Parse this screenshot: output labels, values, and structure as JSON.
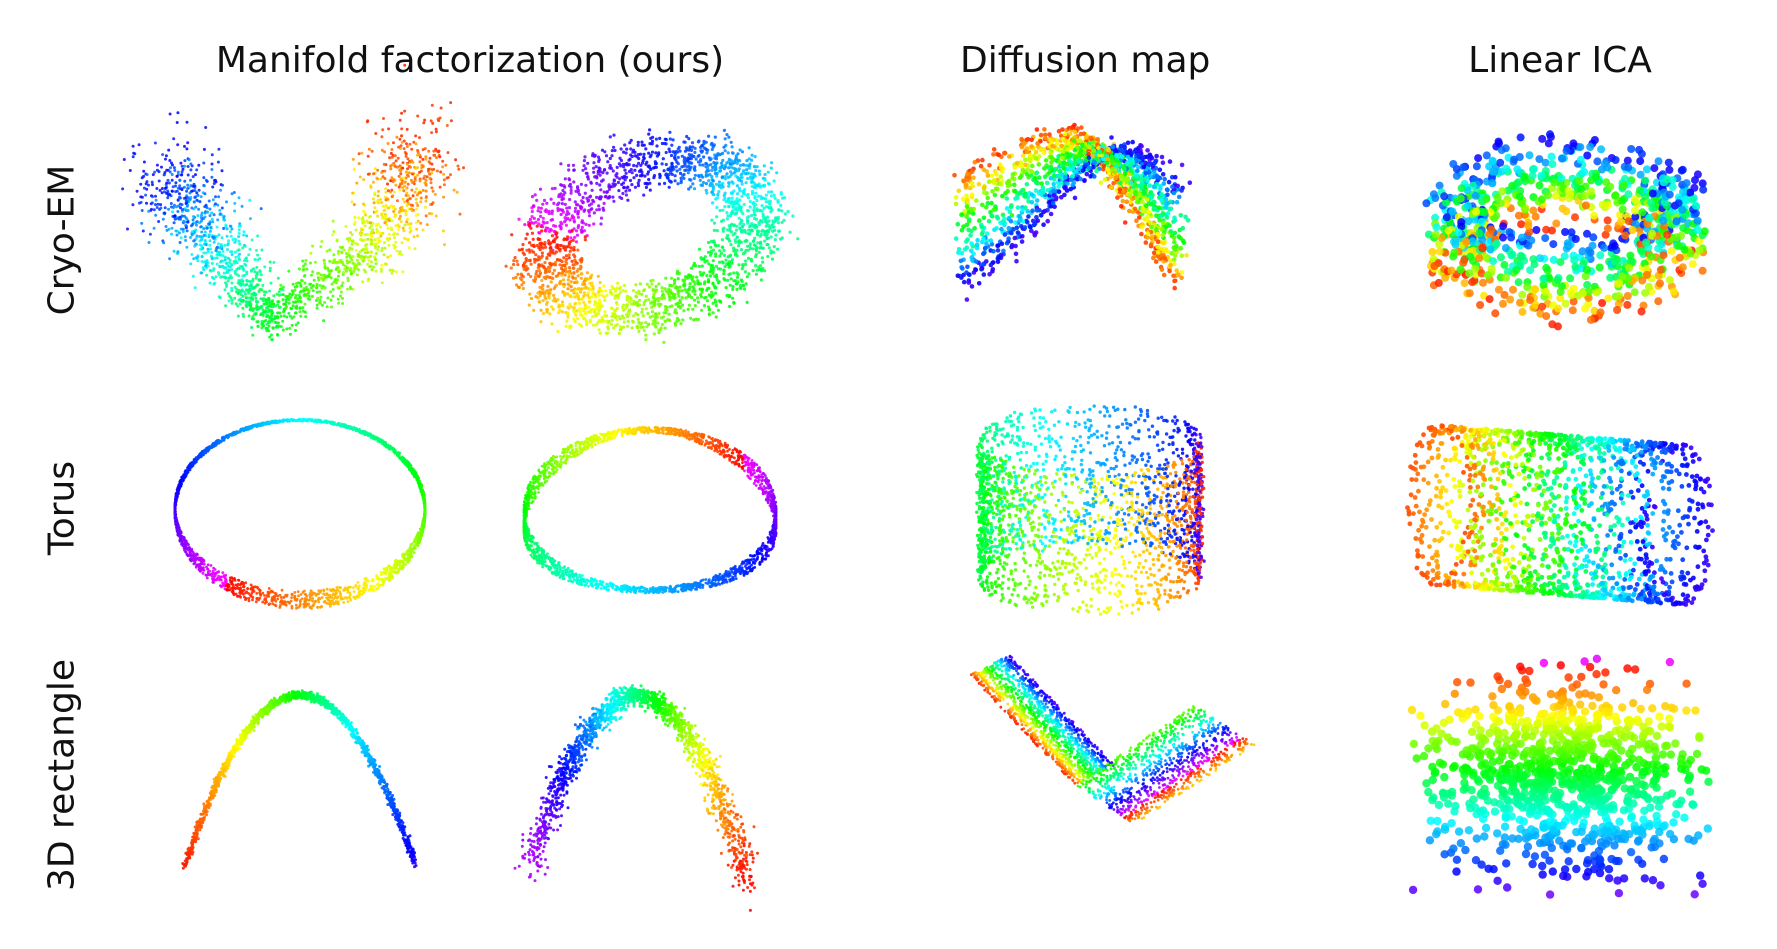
{
  "figure": {
    "column_titles": {
      "manifold": "Manifold factorization (ours)",
      "diffusion": "Diffusion map",
      "ica": "Linear ICA"
    },
    "row_labels": {
      "cryo": "Cryo-EM",
      "torus": "Torus",
      "rect": "3D rectangle"
    },
    "colormap": "hsv-rainbow",
    "background": "#ffffff"
  }
}
